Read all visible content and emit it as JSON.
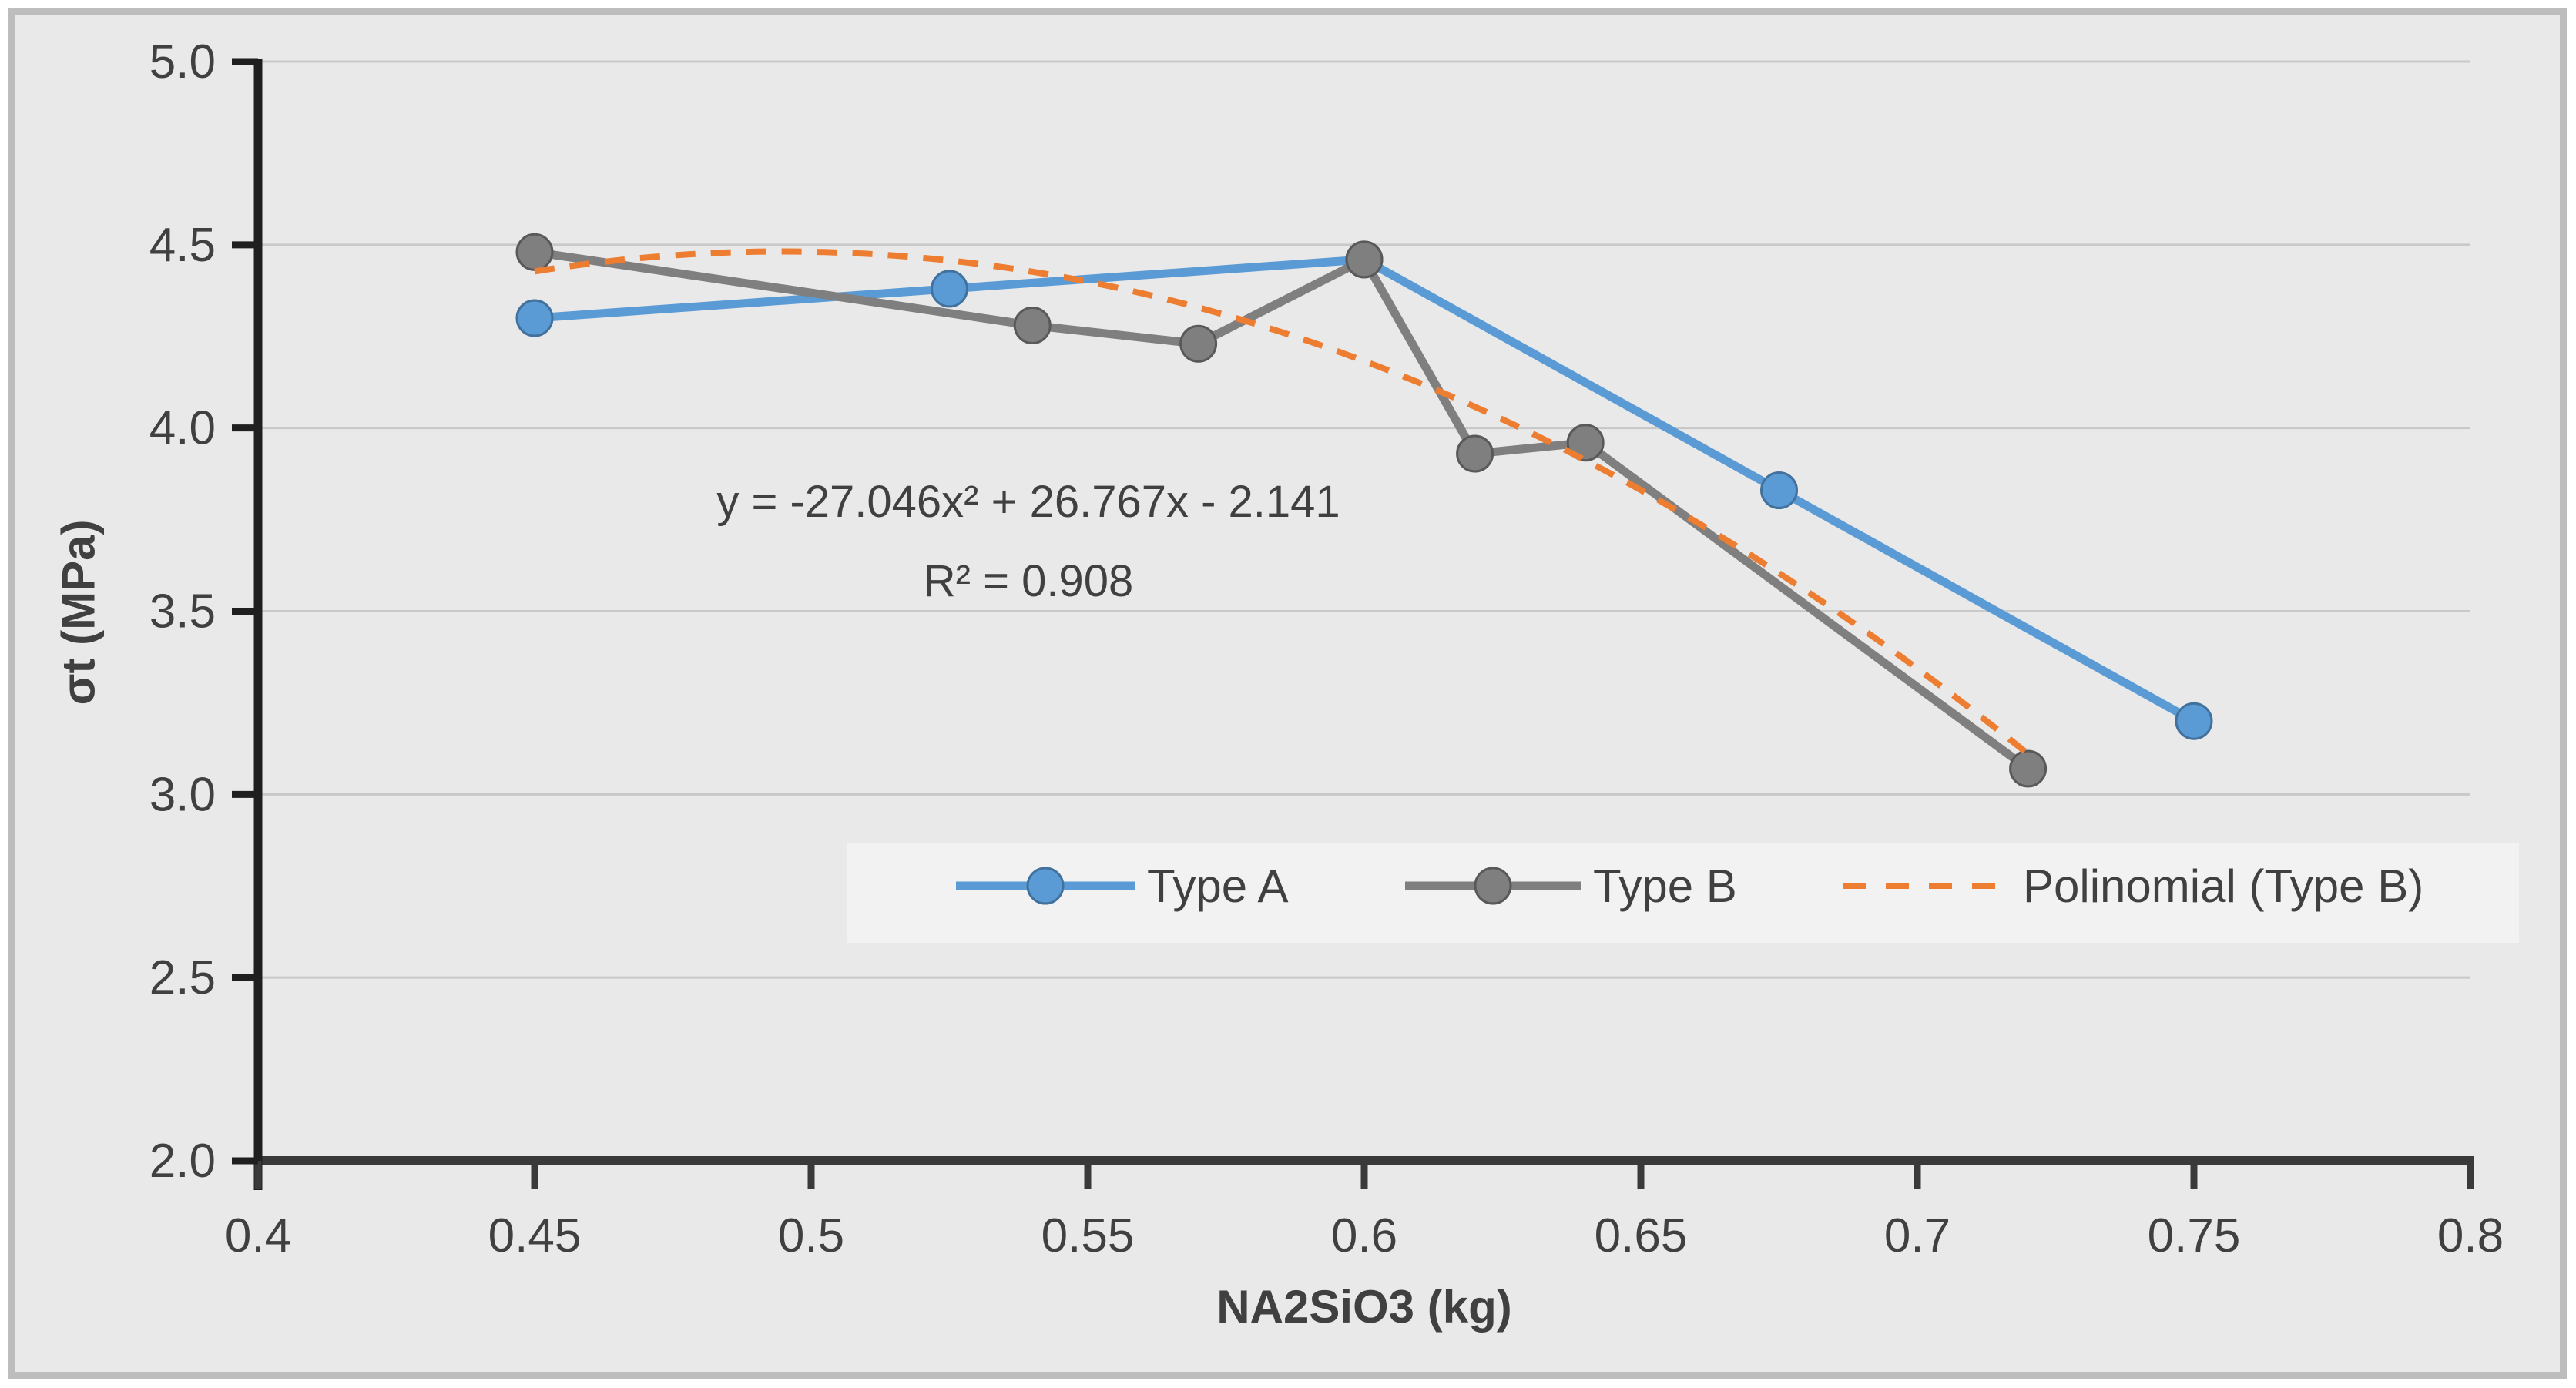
{
  "chart_data": {
    "type": "line",
    "title": "",
    "xlabel": "NA2SiO3 (kg)",
    "ylabel": "σt (MPa)",
    "xlim": [
      0.4,
      0.8
    ],
    "ylim": [
      2.0,
      5.0
    ],
    "x_tick_labels": [
      "0.4",
      "0.45",
      "0.5",
      "0.55",
      "0.6",
      "0.65",
      "0.7",
      "0.75",
      "0.8"
    ],
    "y_tick_labels": [
      "2.0",
      "2.5",
      "3.0",
      "3.5",
      "4.0",
      "4.5",
      "5.0"
    ],
    "grid": true,
    "legend_position": "bottom-inside-horizontal",
    "series": [
      {
        "name": "Type A",
        "color": "#5B9BD5",
        "marker_stroke": "#41719C",
        "marker": "circle",
        "points": [
          [
            0.45,
            4.3
          ],
          [
            0.525,
            4.38
          ],
          [
            0.6,
            4.46
          ],
          [
            0.675,
            3.83
          ],
          [
            0.75,
            3.2
          ]
        ]
      },
      {
        "name": "Type B",
        "color": "#7F7F7F",
        "marker_stroke": "#595959",
        "marker": "circle",
        "points": [
          [
            0.45,
            4.48
          ],
          [
            0.54,
            4.28
          ],
          [
            0.57,
            4.23
          ],
          [
            0.6,
            4.46
          ],
          [
            0.62,
            3.93
          ],
          [
            0.64,
            3.96
          ],
          [
            0.72,
            3.07
          ]
        ]
      }
    ],
    "trendline": {
      "name": "Polinomial (Type B)",
      "color": "#ED7D31",
      "style": "dashed",
      "coefficients": {
        "a": -27.046,
        "b": 26.767,
        "c": -2.141
      },
      "domain": [
        0.45,
        0.72
      ],
      "equation": "y = -27.046x² + 26.767x - 2.141",
      "r_squared": "R² = 0.908"
    },
    "colors": {
      "background": "#E9E9E9",
      "frame_border": "#BDBDBD",
      "gridline": "#C9C9C9",
      "y_axis": "#1F1F1F",
      "x_axis": "#3A3A3A",
      "text": "#404040"
    }
  },
  "annotation": {
    "line1": "y = -27.046x² + 26.767x - 2.141",
    "line2": "R² = 0.908"
  },
  "legend": {
    "items": [
      {
        "label": "Type A"
      },
      {
        "label": "Type B"
      },
      {
        "label": "Polinomial (Type B)"
      }
    ]
  },
  "axis": {
    "x_title": "NA2SiO3 (kg)",
    "y_title": "σt (MPa)"
  }
}
